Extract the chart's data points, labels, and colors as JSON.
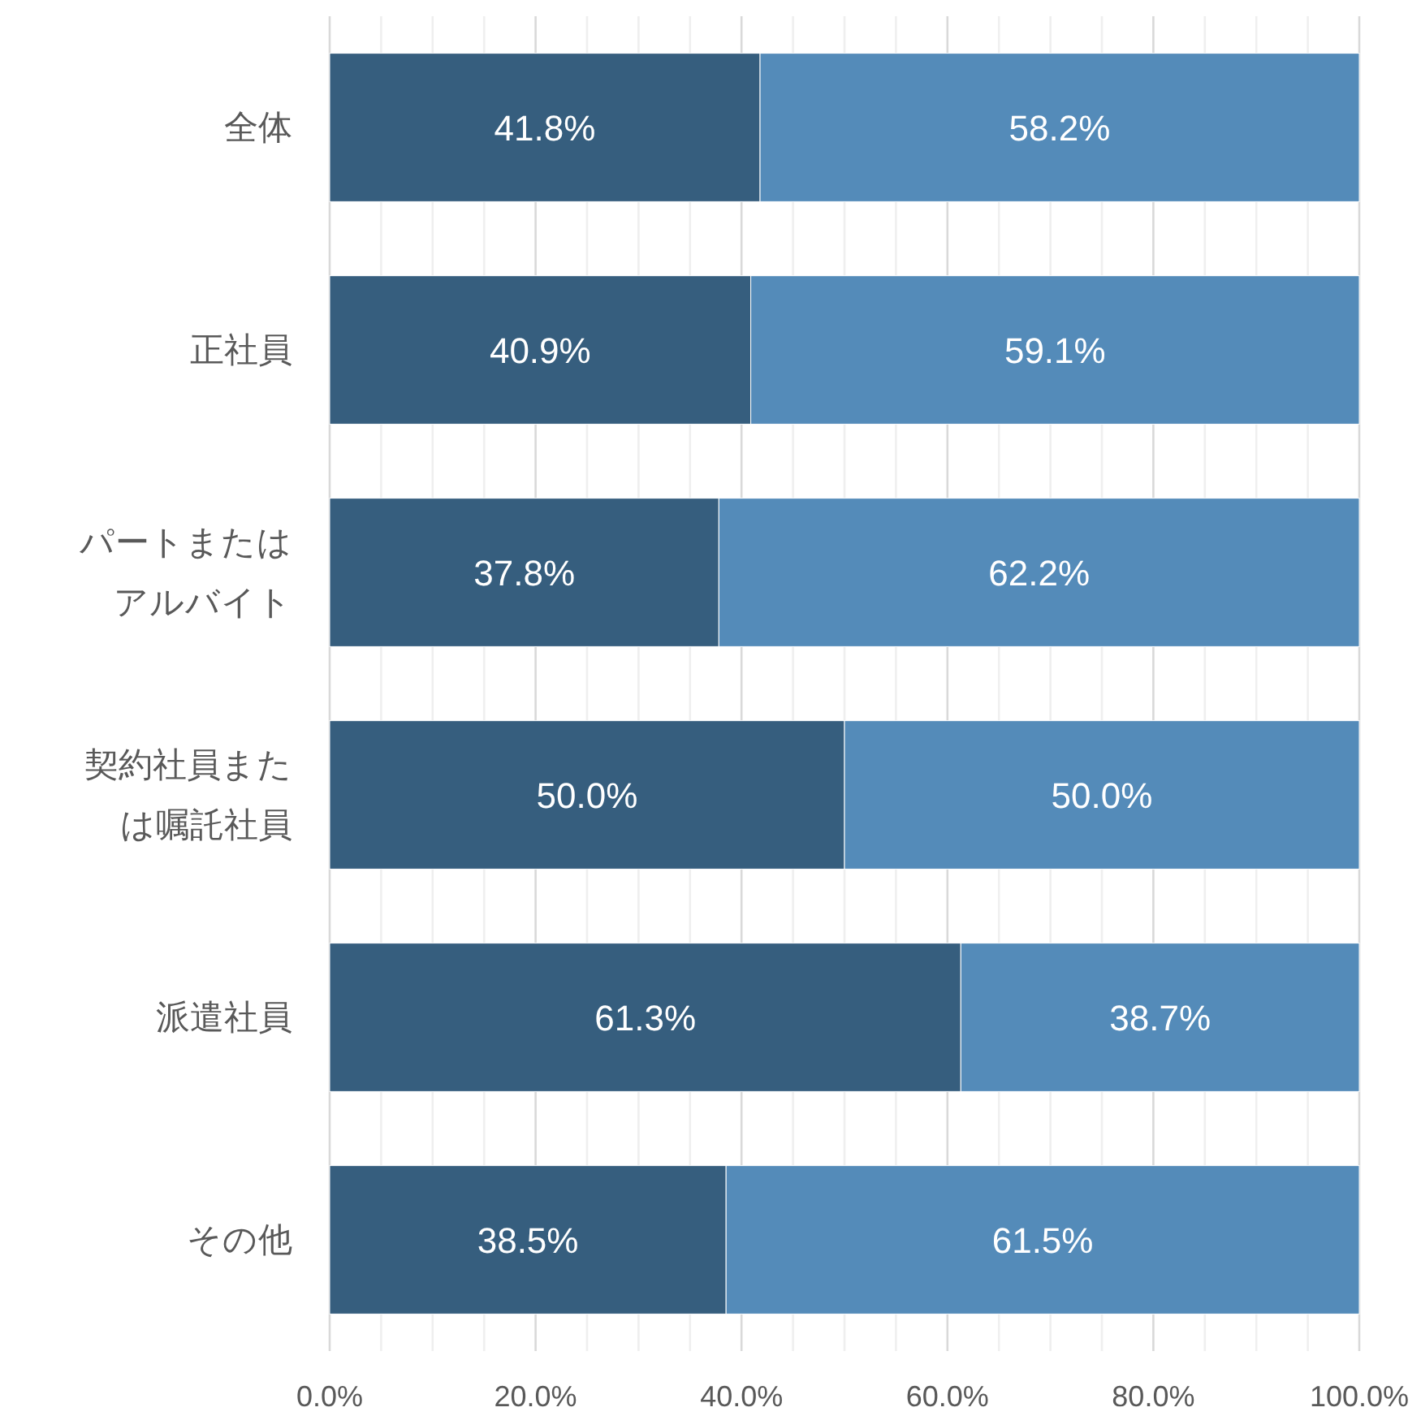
{
  "chart_data": {
    "type": "bar",
    "orientation": "horizontal",
    "stacked": true,
    "categories": [
      "全体",
      "正社員",
      "パートまたはアルバイト",
      "契約社員または嘱託社員",
      "派遣社員",
      "その他"
    ],
    "series": [
      {
        "color": "#365e7e",
        "values": [
          41.8,
          40.9,
          37.8,
          50.0,
          61.3,
          38.5
        ],
        "value_labels": [
          "41.8%",
          "40.9%",
          "37.8%",
          "50.0%",
          "61.3%",
          "38.5%"
        ]
      },
      {
        "color": "#548bb9",
        "values": [
          58.2,
          59.1,
          62.2,
          50.0,
          38.7,
          61.5
        ],
        "value_labels": [
          "58.2%",
          "59.1%",
          "62.2%",
          "50.0%",
          "38.7%",
          "61.5%"
        ]
      }
    ],
    "xlim": [
      0,
      100
    ],
    "xticks": [
      {
        "value": 0,
        "label": "0.0%"
      },
      {
        "value": 5,
        "label": null
      },
      {
        "value": 10,
        "label": null
      },
      {
        "value": 15,
        "label": null
      },
      {
        "value": 20,
        "label": "20.0%"
      },
      {
        "value": 25,
        "label": null
      },
      {
        "value": 30,
        "label": null
      },
      {
        "value": 35,
        "label": null
      },
      {
        "value": 40,
        "label": "40.0%"
      },
      {
        "value": 45,
        "label": null
      },
      {
        "value": 50,
        "label": null
      },
      {
        "value": 55,
        "label": null
      },
      {
        "value": 60,
        "label": "60.0%"
      },
      {
        "value": 65,
        "label": null
      },
      {
        "value": 70,
        "label": null
      },
      {
        "value": 75,
        "label": null
      },
      {
        "value": 80,
        "label": "80.0%"
      },
      {
        "value": 85,
        "label": null
      },
      {
        "value": 90,
        "label": null
      },
      {
        "value": 95,
        "label": null
      },
      {
        "value": 100,
        "label": "100.0%"
      }
    ],
    "grid": "x"
  }
}
